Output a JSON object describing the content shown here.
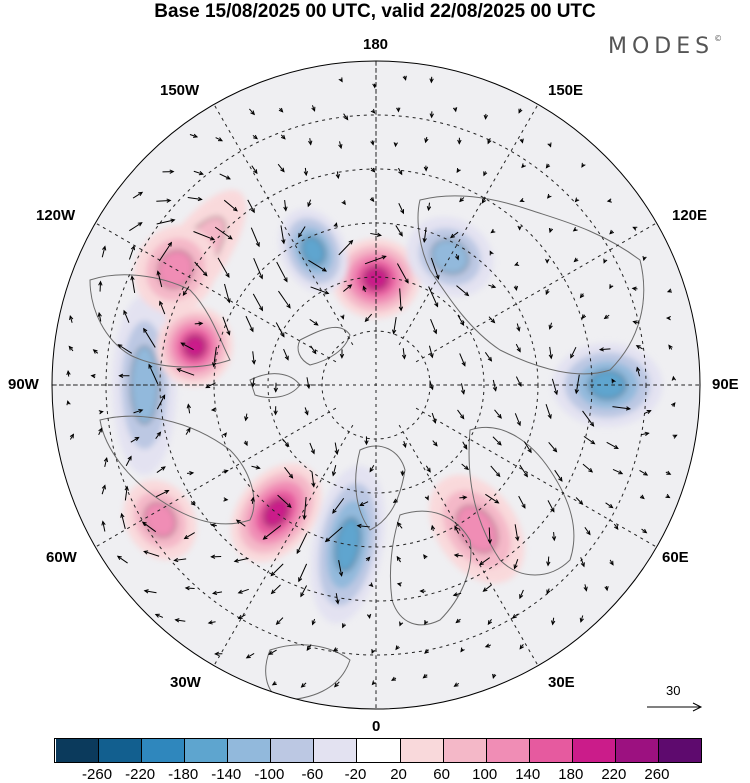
{
  "title": "Base 15/08/2025 00 UTC, valid 22/08/2025 00 UTC",
  "brand": "MODES",
  "brand_mark": "©",
  "longitude_labels": {
    "top": "180",
    "bottom": "0",
    "left": "90W",
    "right": "90E",
    "upper_left_1": "150W",
    "upper_left_2": "120W",
    "lower_left_1": "60W",
    "lower_left_2": "30W",
    "upper_right_1": "150E",
    "upper_right_2": "120E",
    "lower_right_1": "60E",
    "lower_right_2": "30E"
  },
  "vector_reference": {
    "label": "30"
  },
  "colorbar": {
    "colors": [
      "#0b3a5c",
      "#125f8f",
      "#2f87bd",
      "#5ea5cf",
      "#92b9dc",
      "#bcc8e3",
      "#e3e2f1",
      "#ffffff",
      "#f9d9db",
      "#f4b8c8",
      "#f08db5",
      "#e65a9f",
      "#cb1c8a",
      "#9c1180",
      "#5e0a6e"
    ],
    "ticks": [
      "-260",
      "-220",
      "-180",
      "-140",
      "-100",
      "-60",
      "-20",
      "20",
      "60",
      "100",
      "140",
      "180",
      "220",
      "260"
    ]
  },
  "anomalies": [
    {
      "lon": 180,
      "lat": 67,
      "value": 200,
      "rx": 44,
      "ry": 40
    },
    {
      "lon": 150,
      "lat": 58,
      "value": -140,
      "rx": 45,
      "ry": 38
    },
    {
      "lon": 205,
      "lat": 58,
      "value": -180,
      "rx": 32,
      "ry": 44
    },
    {
      "lon": 235,
      "lat": 42,
      "value": 80,
      "rx": 80,
      "ry": 30
    },
    {
      "lon": 90,
      "lat": 40,
      "value": -160,
      "rx": 42,
      "ry": 55
    },
    {
      "lon": 35,
      "lat": 52,
      "value": 140,
      "rx": 40,
      "ry": 60
    },
    {
      "lon": 350,
      "lat": 55,
      "value": -160,
      "rx": 35,
      "ry": 80
    },
    {
      "lon": 322,
      "lat": 55,
      "value": 200,
      "rx": 38,
      "ry": 55
    },
    {
      "lon": 302,
      "lat": 35,
      "value": 140,
      "rx": 42,
      "ry": 34
    },
    {
      "lon": 270,
      "lat": 40,
      "value": -140,
      "rx": 90,
      "ry": 32
    },
    {
      "lon": 258,
      "lat": 50,
      "value": 200,
      "rx": 40,
      "ry": 38
    },
    {
      "lon": 240,
      "lat": 40,
      "value": 140,
      "rx": 45,
      "ry": 40
    }
  ]
}
